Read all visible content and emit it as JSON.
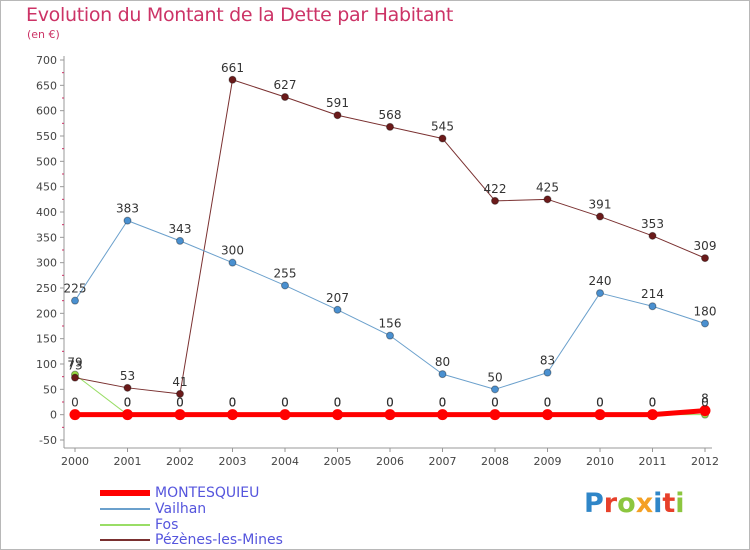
{
  "title": "Evolution du Montant de la Dette par Habitant",
  "subtitle": "(en €)",
  "brand": {
    "logo_text": "Proxiti",
    "letter_colors": [
      "#2f86c8",
      "#e7402a",
      "#8cc63f",
      "#f4a024",
      "#2f86c8",
      "#e7402a",
      "#8cc63f"
    ]
  },
  "chart_data": {
    "type": "line",
    "x": [
      "2000",
      "2001",
      "2002",
      "2003",
      "2004",
      "2005",
      "2006",
      "2007",
      "2008",
      "2009",
      "2010",
      "2011",
      "2012"
    ],
    "ylim": [
      -50,
      700
    ],
    "yticks": [
      -50,
      0,
      50,
      100,
      150,
      200,
      250,
      300,
      350,
      400,
      450,
      500,
      550,
      600,
      650,
      700
    ],
    "grid": false,
    "legend_position": "bottom-left",
    "series": [
      {
        "name": "MONTESQUIEU",
        "color": "#ff0000",
        "line_width": 5,
        "marker_fill": "#ff0000",
        "values": [
          0,
          0,
          0,
          0,
          0,
          0,
          0,
          0,
          0,
          0,
          0,
          0,
          8
        ],
        "labels": [
          "0",
          "0",
          "0",
          "0",
          "0",
          "0",
          "0",
          "0",
          "0",
          "0",
          "0",
          "0",
          "8"
        ]
      },
      {
        "name": "Vailhan",
        "color": "#6ba0cc",
        "line_width": 1,
        "marker_fill": "#4a90d0",
        "values": [
          225,
          383,
          343,
          300,
          255,
          207,
          156,
          80,
          50,
          83,
          240,
          214,
          180
        ],
        "labels": [
          "225",
          "383",
          "343",
          "300",
          "255",
          "207",
          "156",
          "80",
          "50",
          "83",
          "240",
          "214",
          "180"
        ]
      },
      {
        "name": "Fos",
        "color": "#99dd66",
        "line_width": 1,
        "marker_fill": "#99dd44",
        "values": [
          79,
          0,
          0,
          0,
          0,
          0,
          0,
          0,
          0,
          0,
          0,
          0,
          0
        ],
        "labels": [
          "79",
          "0",
          "0",
          "0",
          "0",
          "0",
          "0",
          "0",
          "0",
          "0",
          "0",
          "0",
          "0"
        ]
      },
      {
        "name": "Pézènes-les-Mines",
        "color": "#7a3030",
        "line_width": 1,
        "marker_fill": "#6b1a1a",
        "values": [
          73,
          53,
          41,
          661,
          627,
          591,
          568,
          545,
          422,
          425,
          391,
          353,
          309
        ],
        "labels": [
          "73",
          "53",
          "41",
          "661",
          "627",
          "591",
          "568",
          "545",
          "422",
          "425",
          "391",
          "353",
          "309"
        ]
      }
    ]
  }
}
